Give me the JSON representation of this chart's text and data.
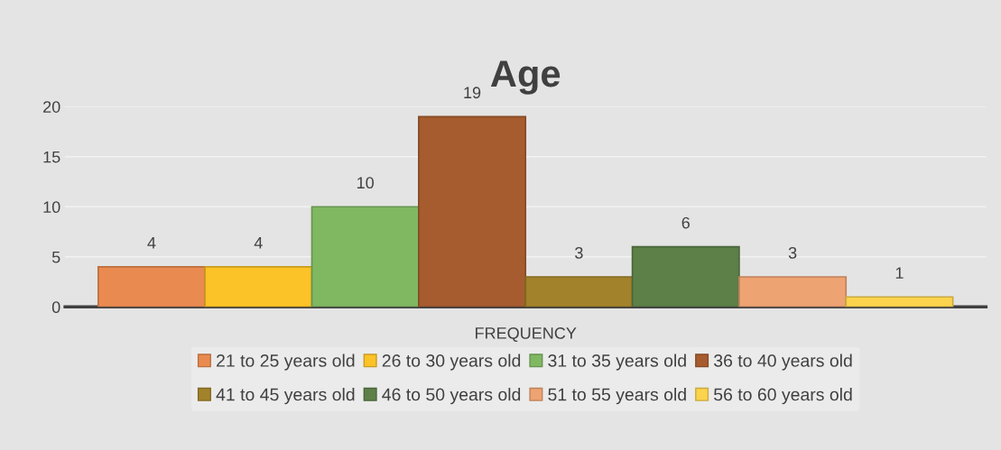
{
  "chart_data": {
    "type": "bar",
    "title": "Age",
    "categories": [
      "FREQUENCY"
    ],
    "series": [
      {
        "name": "21 to 25 years old",
        "color": "#e98b50",
        "values": [
          4
        ]
      },
      {
        "name": "26 to 30 years old",
        "color": "#fbc327",
        "values": [
          4
        ]
      },
      {
        "name": "31 to 35 years old",
        "color": "#80b862",
        "values": [
          10
        ]
      },
      {
        "name": "36 to 40 years old",
        "color": "#a65c2e",
        "values": [
          19
        ]
      },
      {
        "name": "41 to 45 years old",
        "color": "#a2822a",
        "values": [
          3
        ]
      },
      {
        "name": "46 to 50 years old",
        "color": "#5d7f48",
        "values": [
          6
        ]
      },
      {
        "name": "51 to 55 years old",
        "color": "#eea372",
        "values": [
          3
        ]
      },
      {
        "name": "56 to 60 years old",
        "color": "#fcd34d",
        "values": [
          1
        ]
      }
    ],
    "ylim": [
      0,
      20
    ],
    "yticks": [
      0,
      5,
      10,
      15,
      20
    ],
    "grid": "y",
    "legend": "bottom",
    "data_labels": true
  }
}
